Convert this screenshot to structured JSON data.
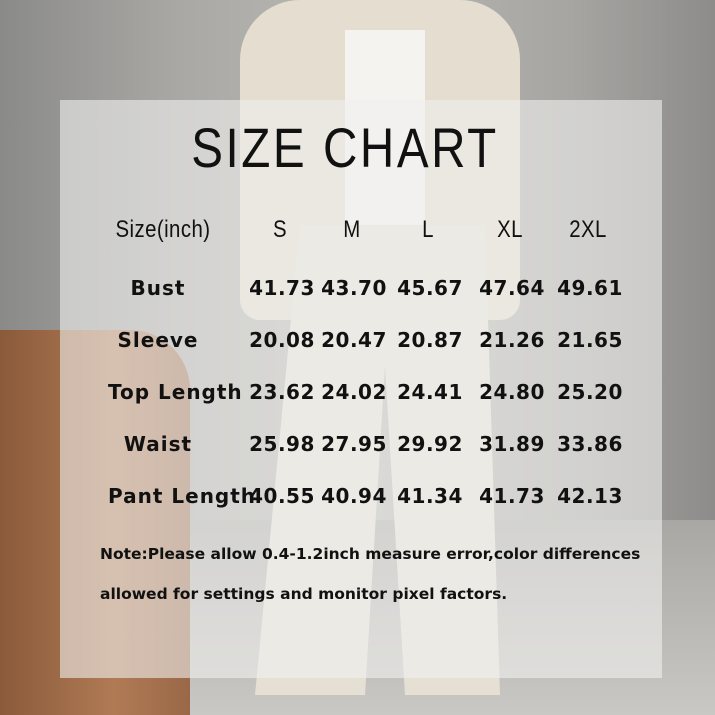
{
  "title": "SIZE CHART",
  "table": {
    "header": [
      "Size(inch)",
      "S",
      "M",
      "L",
      "XL",
      "2XL"
    ],
    "rows": [
      {
        "label": "Bust",
        "values": [
          "41.73",
          "43.70",
          "45.67",
          "47.64",
          "49.61"
        ]
      },
      {
        "label": "Sleeve",
        "values": [
          "20.08",
          "20.47",
          "20.87",
          "21.26",
          "21.65"
        ]
      },
      {
        "label": "Top Length",
        "values": [
          "23.62",
          "24.02",
          "24.41",
          "24.80",
          "25.20"
        ]
      },
      {
        "label": "Waist",
        "values": [
          "25.98",
          "27.95",
          "29.92",
          "31.89",
          "33.86"
        ]
      },
      {
        "label": "Pant Length",
        "values": [
          "40.55",
          "40.94",
          "41.34",
          "41.73",
          "42.13"
        ]
      }
    ]
  },
  "note": {
    "line1": "Note:Please allow 0.4-1.2inch measure error,color differences",
    "line2": "allowed for settings and monitor pixel factors."
  }
}
